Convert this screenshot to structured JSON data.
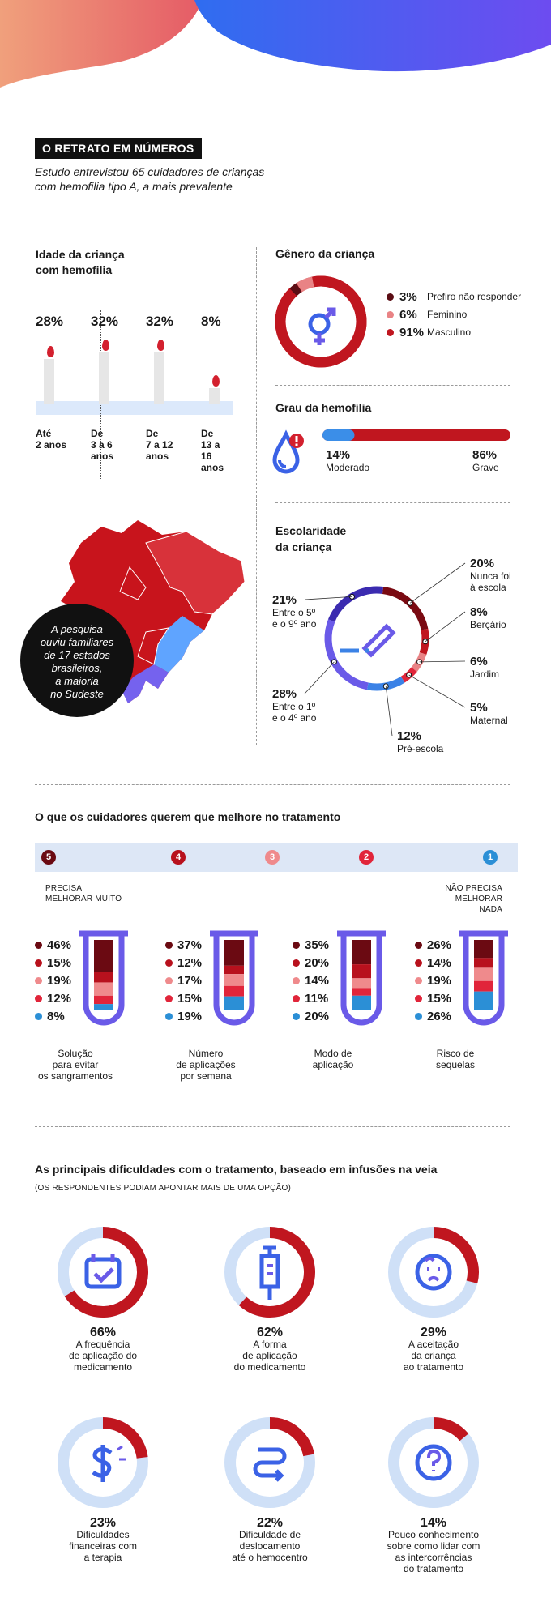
{
  "header": {
    "badge": "O RETRATO EM NÚMEROS",
    "subtitle_line1": "Estudo entrevistou 65 cuidadores de crianças",
    "subtitle_line2": "com hemofilia tipo A, a mais prevalente"
  },
  "age": {
    "title_line1": "Idade da criança",
    "title_line2": "com hemofilia",
    "items": [
      {
        "pct": "28%",
        "value": 28,
        "label": [
          "Até",
          "2 anos"
        ]
      },
      {
        "pct": "32%",
        "value": 32,
        "label": [
          "De",
          "3 a 6",
          "anos"
        ]
      },
      {
        "pct": "32%",
        "value": 32,
        "label": [
          "De",
          "7 a 12",
          "anos"
        ]
      },
      {
        "pct": "8%",
        "value": 8,
        "label": [
          "De",
          "13 a 16",
          "anos"
        ]
      }
    ]
  },
  "gender": {
    "title": "Gênero da criança",
    "items": [
      {
        "pct": "3%",
        "label": "Prefiro não responder",
        "value": 3,
        "color": "#5b0d14"
      },
      {
        "pct": "6%",
        "label": "Feminino",
        "value": 6,
        "color": "#e98385"
      },
      {
        "pct": "91%",
        "label": "Masculino",
        "value": 91,
        "color": "#c0161f"
      }
    ]
  },
  "severity": {
    "title": "Grau da hemofilia",
    "moderate_pct": "14%",
    "moderate_label": "Moderado",
    "moderate_value": 14,
    "severe_pct": "86%",
    "severe_label": "Grave",
    "severe_value": 86
  },
  "map": {
    "bubble_line1": "A pesquisa",
    "bubble_line2": "ouviu familiares",
    "bubble_line3": "de 17 estados",
    "bubble_line4": "brasileiros,",
    "bubble_line5": "a maioria",
    "bubble_line6": "no Sudeste"
  },
  "school": {
    "title_line1": "Escolaridade",
    "title_line2": "da criança",
    "items": [
      {
        "pct": "20%",
        "label": [
          "Nunca foi",
          "à escola"
        ],
        "value": 20,
        "color": "#7a0a12"
      },
      {
        "pct": "8%",
        "label": [
          "Berçário"
        ],
        "value": 8,
        "color": "#c0161f"
      },
      {
        "pct": "6%",
        "label": [
          "Jardim"
        ],
        "value": 6,
        "color": "#e98385"
      },
      {
        "pct": "5%",
        "label": [
          "Maternal"
        ],
        "value": 5,
        "color": "#e1253a"
      },
      {
        "pct": "12%",
        "label": [
          "Pré-escola"
        ],
        "value": 12,
        "color": "#3b82e6"
      },
      {
        "pct": "28%",
        "label": [
          "Entre o 1º",
          "e o 4º ano"
        ],
        "value": 28,
        "color": "#6a5ae8"
      },
      {
        "pct": "21%",
        "label": [
          "Entre o 5º",
          "e o 9º ano"
        ],
        "value": 21,
        "color": "#3b2bb0"
      }
    ]
  },
  "improve": {
    "title": "O que os cuidadores querem que melhore no tratamento",
    "scale": [
      {
        "num": "5",
        "color": "#6b0a12"
      },
      {
        "num": "4",
        "color": "#b8111d"
      },
      {
        "num": "3",
        "color": "#ef8a8c"
      },
      {
        "num": "2",
        "color": "#e1253a"
      },
      {
        "num": "1",
        "color": "#2b8fd6"
      }
    ],
    "left_note_line1": "PRECISA",
    "left_note_line2": "MELHORAR MUITO",
    "right_note_line1": "NÃO PRECISA",
    "right_note_line2": "MELHORAR NADA",
    "tubes": [
      {
        "values": [
          "46%",
          "15%",
          "19%",
          "12%",
          "8%"
        ],
        "nums": [
          46,
          15,
          19,
          12,
          8
        ],
        "label": [
          "Solução",
          "para evitar",
          "os sangramentos"
        ]
      },
      {
        "values": [
          "37%",
          "12%",
          "17%",
          "15%",
          "19%"
        ],
        "nums": [
          37,
          12,
          17,
          15,
          19
        ],
        "label": [
          "Número",
          "de aplicações",
          "por semana"
        ]
      },
      {
        "values": [
          "35%",
          "20%",
          "14%",
          "11%",
          "20%"
        ],
        "nums": [
          35,
          20,
          14,
          11,
          20
        ],
        "label": [
          "Modo de",
          "aplicação"
        ]
      },
      {
        "values": [
          "26%",
          "14%",
          "19%",
          "15%",
          "26%"
        ],
        "nums": [
          26,
          14,
          19,
          15,
          26
        ],
        "label": [
          "Risco de",
          "sequelas"
        ]
      }
    ]
  },
  "difficulties": {
    "title": "As principais dificuldades com o tratamento, baseado em infusões na veia",
    "note": "(OS RESPONDENTES PODIAM APONTAR MAIS DE UMA OPÇÃO)",
    "items": [
      {
        "pct": "66%",
        "value": 66,
        "icon": "calendar-icon",
        "label": [
          "A frequência",
          "de aplicação do",
          "medicamento"
        ]
      },
      {
        "pct": "62%",
        "value": 62,
        "icon": "syringe-icon",
        "label": [
          "A forma",
          "de aplicação",
          "do medicamento"
        ]
      },
      {
        "pct": "29%",
        "value": 29,
        "icon": "crying-baby-icon",
        "label": [
          "A aceitação",
          "da criança",
          "ao tratamento"
        ]
      },
      {
        "pct": "23%",
        "value": 23,
        "icon": "dollar-icon",
        "label": [
          "Dificuldades",
          "financeiras com",
          "a terapia"
        ]
      },
      {
        "pct": "22%",
        "value": 22,
        "icon": "route-icon",
        "label": [
          "Dificuldade de",
          "deslocamento",
          "até o hemocentro"
        ]
      },
      {
        "pct": "14%",
        "value": 14,
        "icon": "question-icon",
        "label": [
          "Pouco conhecimento",
          "sobre como lidar com",
          "as intercorrências",
          "do tratamento"
        ]
      }
    ]
  }
}
